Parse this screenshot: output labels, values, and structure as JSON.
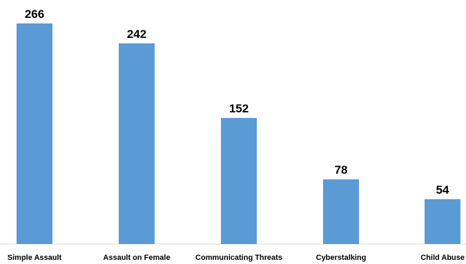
{
  "chart_data": {
    "type": "bar",
    "title": "",
    "xlabel": "",
    "ylabel": "",
    "categories": [
      "Simple Assault",
      "Assault on Female",
      "Communicating Threats",
      "Cyberstalking",
      "Child Abuse"
    ],
    "values": [
      266,
      242,
      152,
      78,
      54
    ],
    "data_labels": [
      "266",
      "242",
      "152",
      "78",
      "54"
    ],
    "ylim": [
      0,
      266
    ],
    "grid": false,
    "legend": "none",
    "colors": {
      "bar": "#5B9BD5",
      "axis": "#d9d9d9",
      "text": "#000000"
    }
  }
}
